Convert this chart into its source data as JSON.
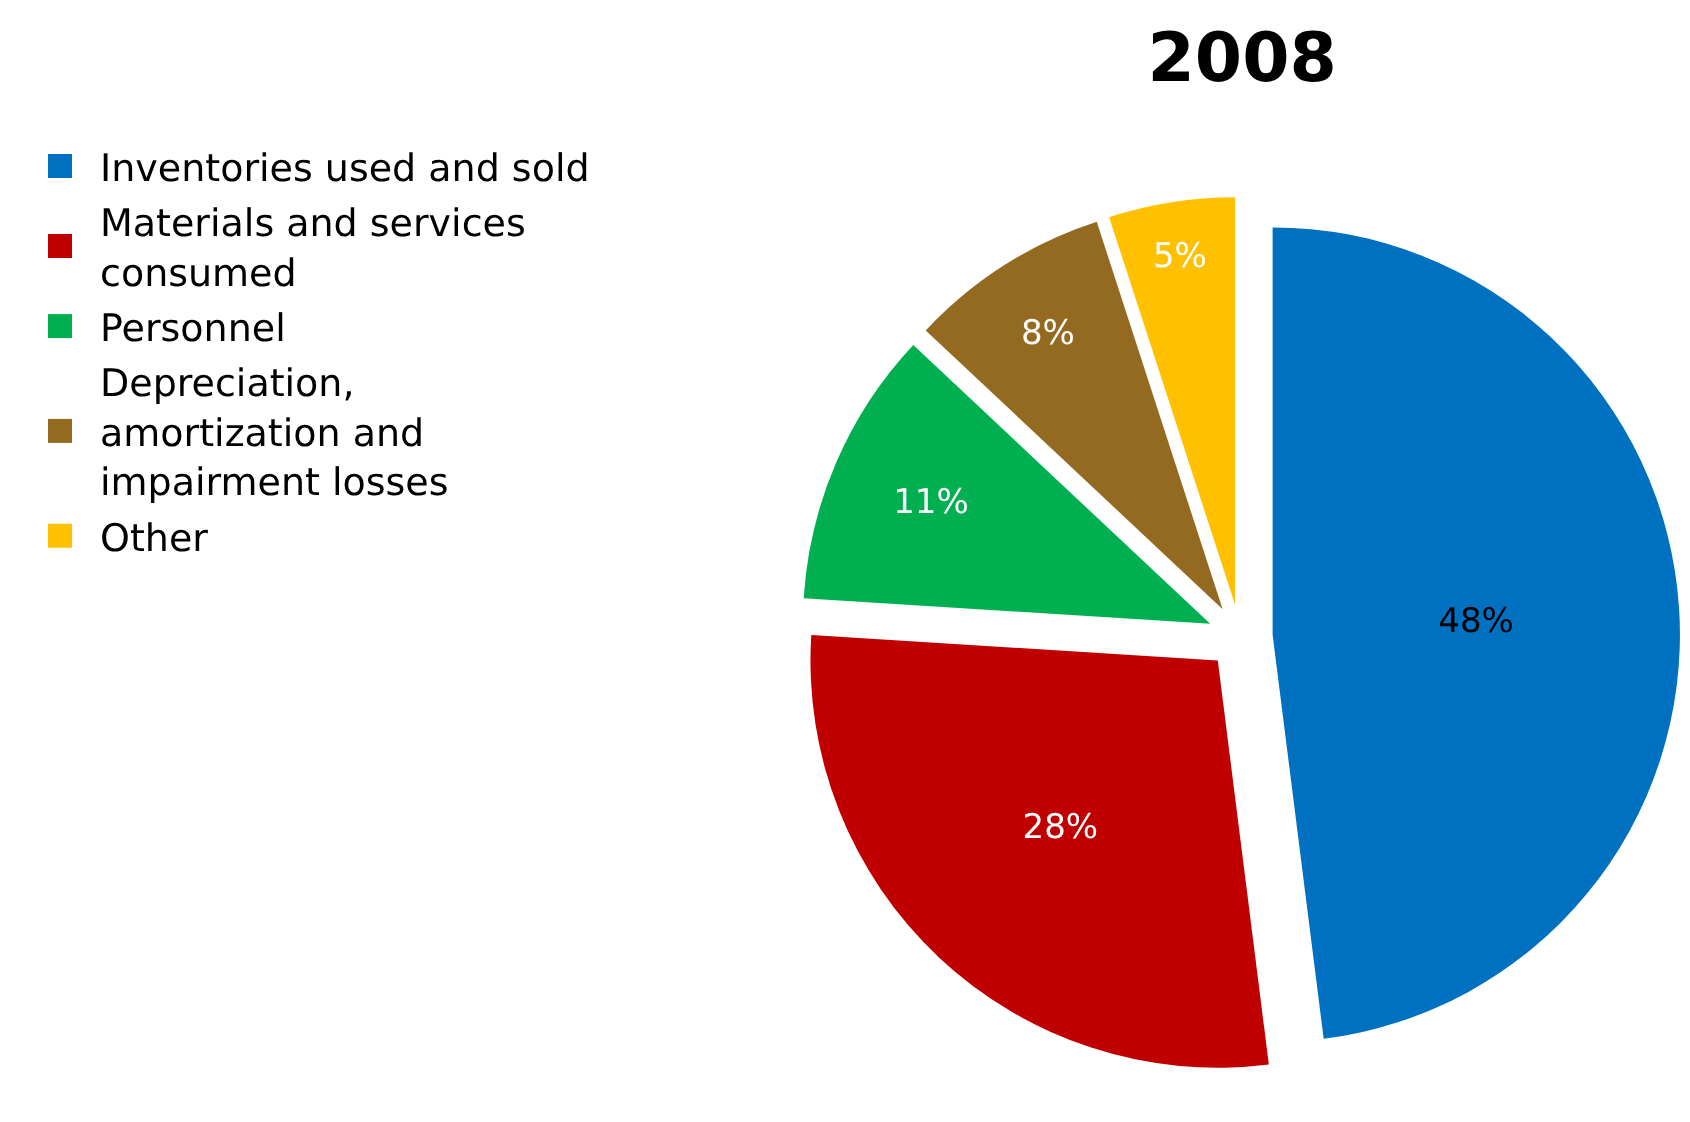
{
  "chart_data": {
    "type": "pie",
    "title": "2008",
    "categories": [
      "Inventories used and sold",
      "Materials and services consumed",
      "Personnel",
      "Depreciation, amortization and impairment losses",
      "Other"
    ],
    "values": [
      48,
      28,
      11,
      8,
      5
    ],
    "value_labels": [
      "48%",
      "28%",
      "11%",
      "8%",
      "5%"
    ],
    "colors": [
      "#0070c0",
      "#c00000",
      "#00b050",
      "#946a20",
      "#ffc000"
    ],
    "legend": "left"
  }
}
